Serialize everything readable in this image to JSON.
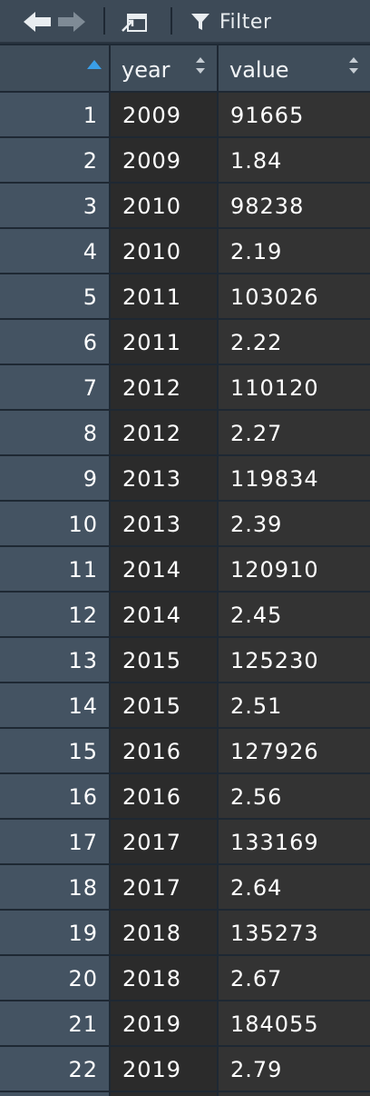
{
  "toolbar": {
    "filter_label": "Filter",
    "icons": [
      "back-arrow-icon",
      "forward-arrow-icon",
      "popout-icon",
      "filter-icon"
    ]
  },
  "columns": [
    {
      "label": ""
    },
    {
      "label": "year"
    },
    {
      "label": "value"
    }
  ],
  "rows": [
    {
      "idx": "1",
      "year": "2009",
      "value": "91665"
    },
    {
      "idx": "2",
      "year": "2009",
      "value": "1.84"
    },
    {
      "idx": "3",
      "year": "2010",
      "value": "98238"
    },
    {
      "idx": "4",
      "year": "2010",
      "value": "2.19"
    },
    {
      "idx": "5",
      "year": "2011",
      "value": "103026"
    },
    {
      "idx": "6",
      "year": "2011",
      "value": "2.22"
    },
    {
      "idx": "7",
      "year": "2012",
      "value": "110120"
    },
    {
      "idx": "8",
      "year": "2012",
      "value": "2.27"
    },
    {
      "idx": "9",
      "year": "2013",
      "value": "119834"
    },
    {
      "idx": "10",
      "year": "2013",
      "value": "2.39"
    },
    {
      "idx": "11",
      "year": "2014",
      "value": "120910"
    },
    {
      "idx": "12",
      "year": "2014",
      "value": "2.45"
    },
    {
      "idx": "13",
      "year": "2015",
      "value": "125230"
    },
    {
      "idx": "14",
      "year": "2015",
      "value": "2.51"
    },
    {
      "idx": "15",
      "year": "2016",
      "value": "127926"
    },
    {
      "idx": "16",
      "year": "2016",
      "value": "2.56"
    },
    {
      "idx": "17",
      "year": "2017",
      "value": "133169"
    },
    {
      "idx": "18",
      "year": "2017",
      "value": "2.64"
    },
    {
      "idx": "19",
      "year": "2018",
      "value": "135273"
    },
    {
      "idx": "20",
      "year": "2018",
      "value": "2.67"
    },
    {
      "idx": "21",
      "year": "2019",
      "value": "184055"
    },
    {
      "idx": "22",
      "year": "2019",
      "value": "2.79"
    }
  ]
}
